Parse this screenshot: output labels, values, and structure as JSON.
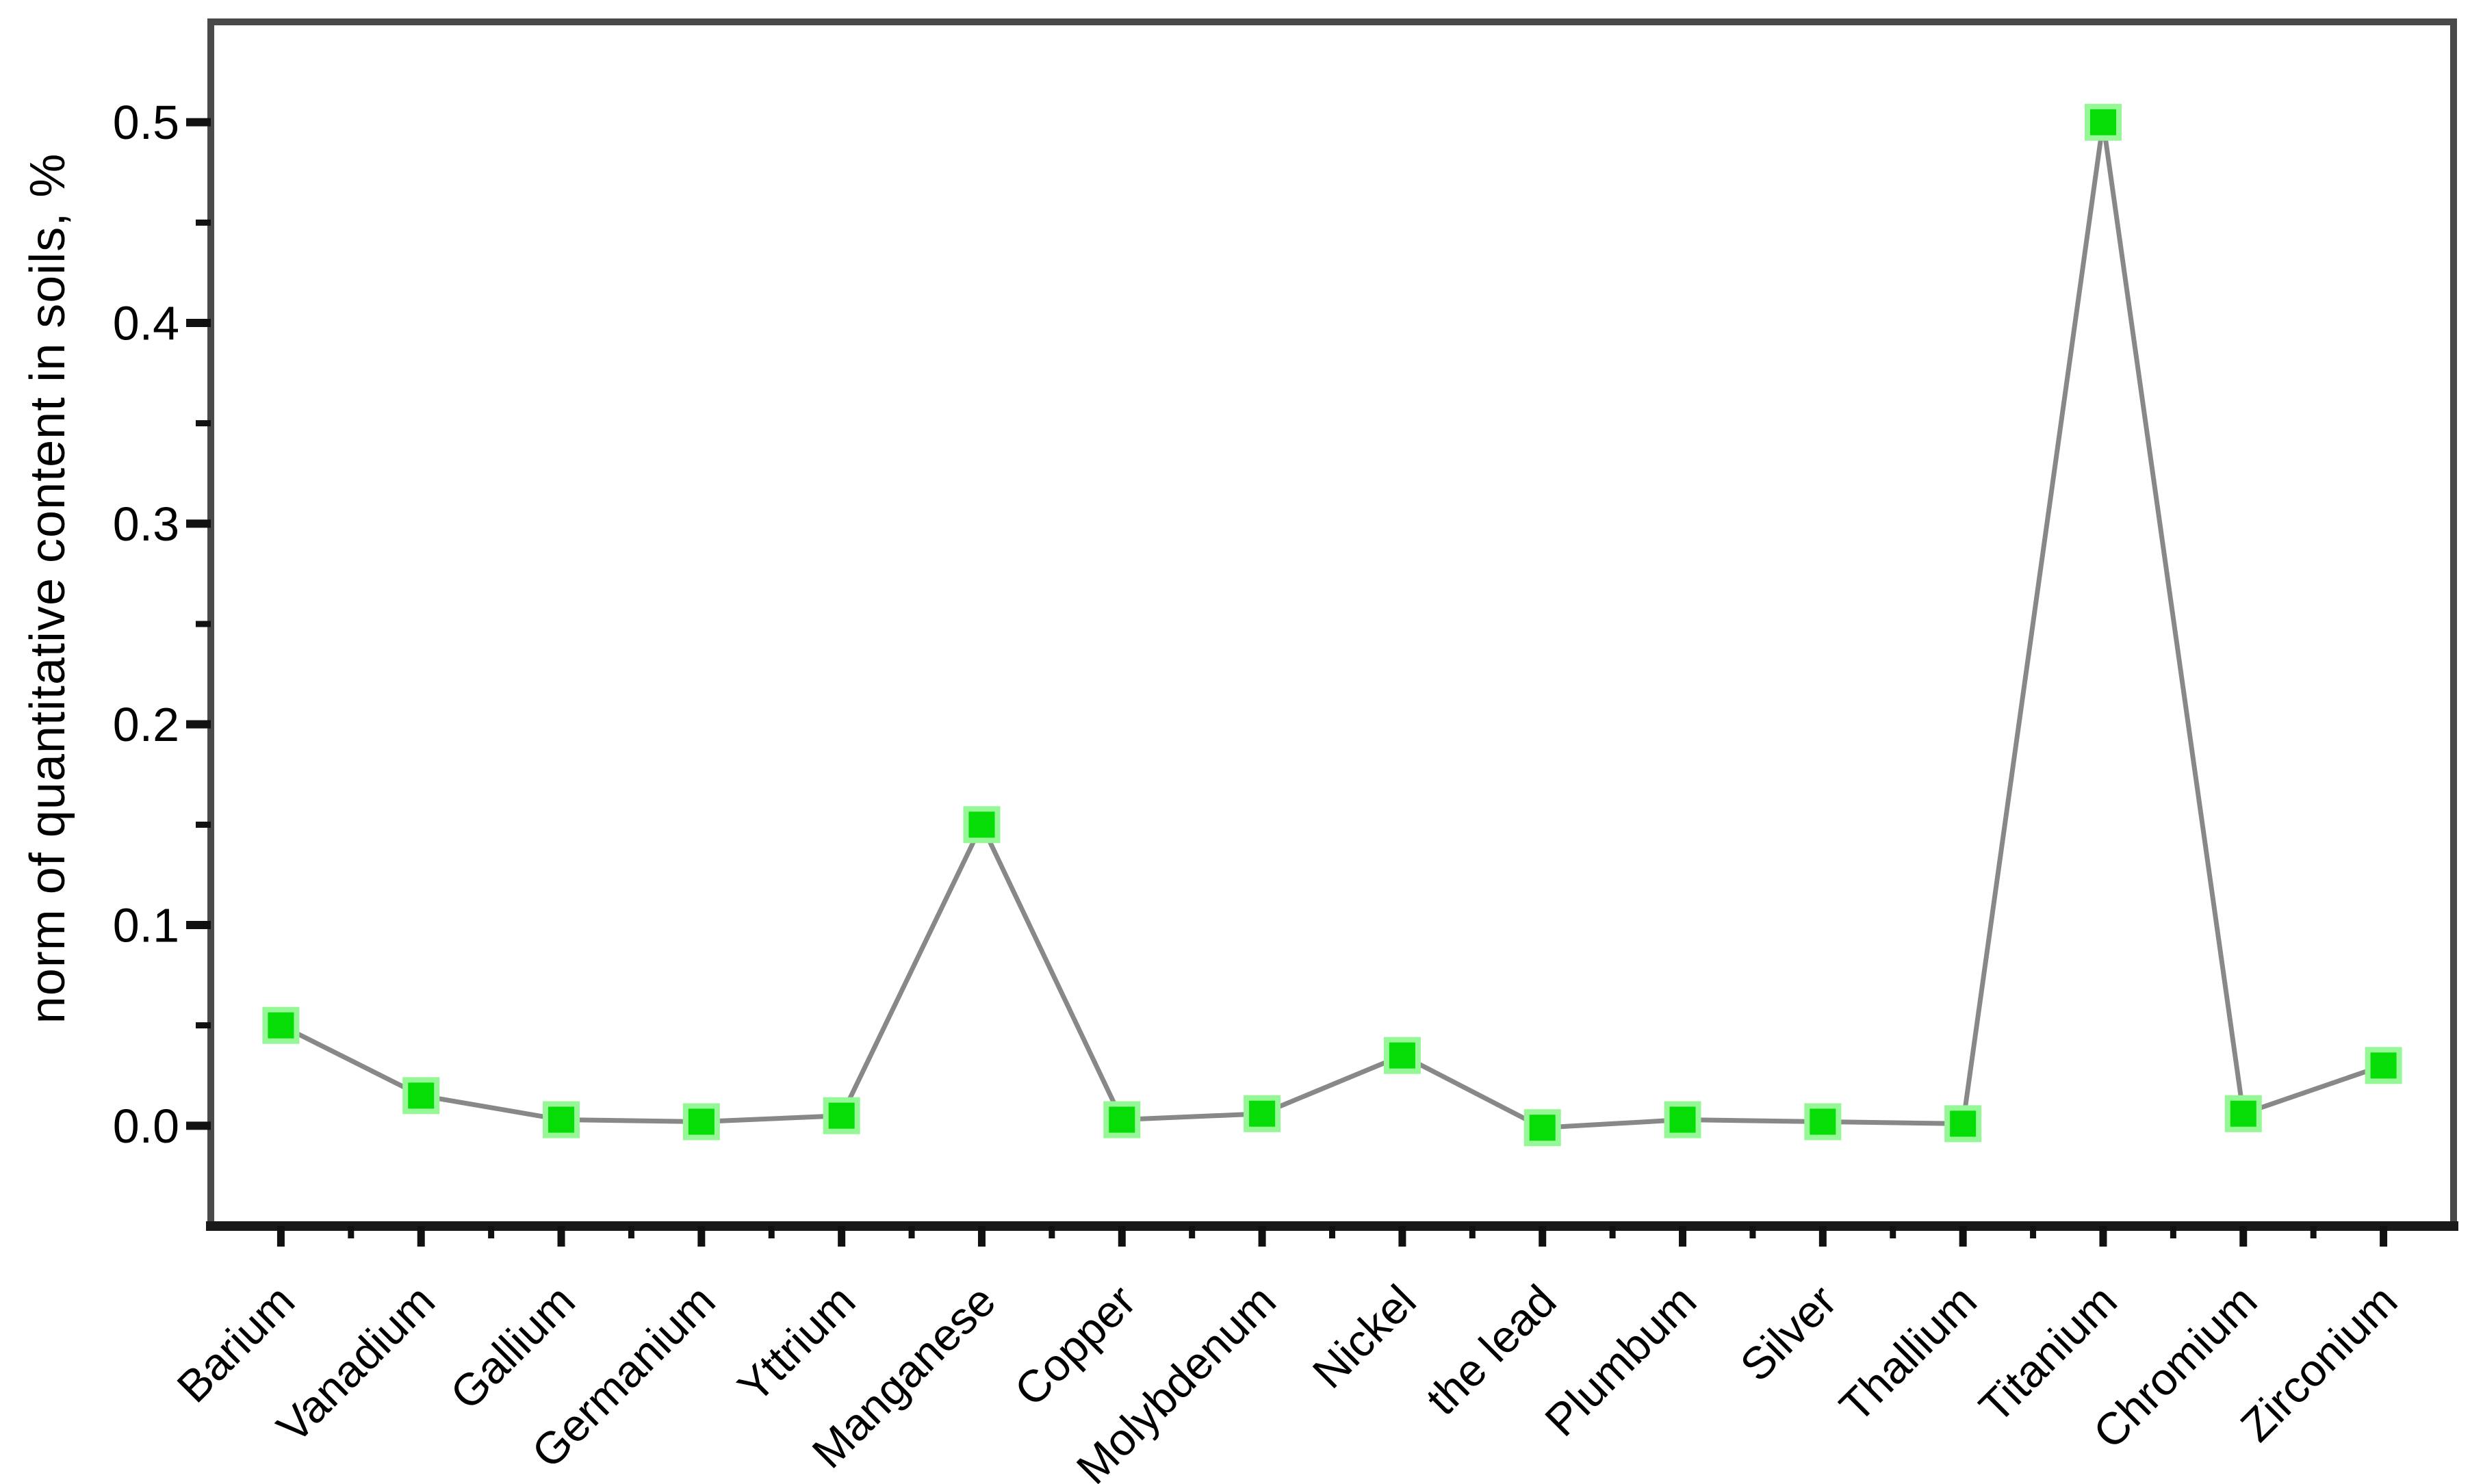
{
  "chart_data": {
    "type": "line",
    "title": "",
    "xlabel": "",
    "ylabel": "norm of quantitative content in soils, %",
    "categories": [
      "Barium",
      "Vanadium",
      "Gallium",
      "Germanium",
      "Yttrium",
      "Manganese",
      "Copper",
      "Molybdenum",
      "Nickel",
      "the lead",
      "Plumbum",
      "Silver",
      "Thallium",
      "Titanium",
      "Chromium",
      "Zirconium"
    ],
    "values": [
      0.05,
      0.015,
      0.003,
      0.002,
      0.005,
      0.15,
      0.003,
      0.006,
      0.035,
      -0.001,
      0.003,
      0.002,
      0.001,
      0.5,
      0.006,
      0.03
    ],
    "series_name": "norm of quantitative content in soils, %",
    "y_ticks": [
      0.0,
      0.1,
      0.2,
      0.3,
      0.4,
      0.5
    ],
    "y_tick_labels": [
      "0.0",
      "0.1",
      "0.2",
      "0.3",
      "0.4",
      "0.5"
    ],
    "y_minor_tick_step": 0.05,
    "ylim": [
      -0.05,
      0.55
    ],
    "x_tick_label_rotation_deg": 45,
    "grid": false,
    "legend_position": "none",
    "marker_shape": "square",
    "colors": {
      "marker_fill": "#06DC06",
      "marker_edge": "#95F795",
      "line": "#888888",
      "frame": "#4A4A4A",
      "bottom_axis": "#191919",
      "tick": "#111111",
      "text": "#000000",
      "background": "#FFFFFF"
    }
  }
}
